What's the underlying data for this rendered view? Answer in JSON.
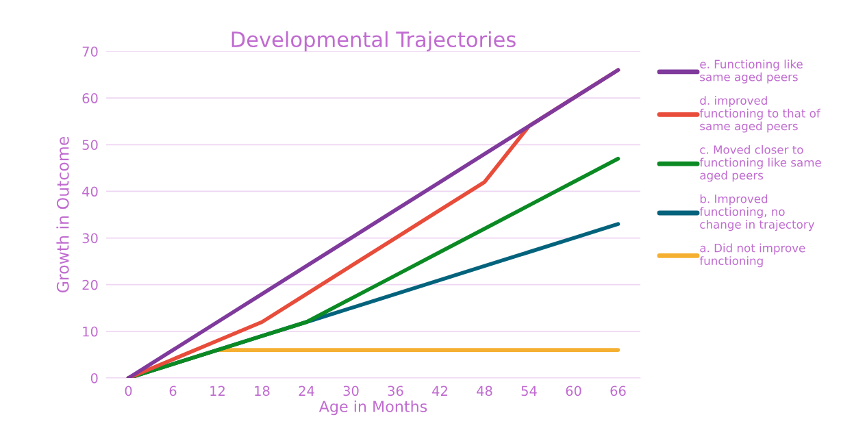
{
  "chart_data": {
    "type": "line",
    "title": "Developmental Trajectories",
    "xlabel": "Age in Months",
    "ylabel": "Growth in Outcome",
    "categories": [
      "0",
      "6",
      "12",
      "18",
      "24",
      "30",
      "36",
      "42",
      "48",
      "54",
      "60",
      "66"
    ],
    "series": [
      {
        "name": "e. Functioning like\nsame aged peers",
        "color": "#7f3a9c",
        "values": [
          0,
          6,
          12,
          18,
          24,
          30,
          36,
          42,
          48,
          54,
          60,
          66
        ]
      },
      {
        "name": "d. improved\nfunctioning to that of\nsame aged peers",
        "color": "#e84c3a",
        "values": [
          0,
          4,
          8,
          12,
          18,
          24,
          30,
          36,
          42,
          54,
          60,
          66
        ]
      },
      {
        "name": "c. Moved closer to\nfunctioning like same\naged peers",
        "color": "#0b8a24",
        "values": [
          0,
          3,
          6,
          9,
          12,
          17,
          22,
          27,
          32,
          37,
          42,
          47
        ]
      },
      {
        "name": "b. Improved\nfunctioning, no\nchange in trajectory",
        "color": "#04637c",
        "values": [
          0,
          3,
          6,
          9,
          12,
          15,
          18,
          21,
          24,
          27,
          30,
          33
        ]
      },
      {
        "name": "a. Did not improve\nfunctioning",
        "color": "#f5b032",
        "values": [
          0,
          3,
          6,
          6,
          6,
          6,
          6,
          6,
          6,
          6,
          6,
          6
        ]
      }
    ],
    "ylim": [
      0,
      70
    ],
    "yticks": [
      0,
      10,
      20,
      30,
      40,
      50,
      60,
      70
    ],
    "grid": "y",
    "legend": "right",
    "marker": "none",
    "line_style": "solid"
  }
}
